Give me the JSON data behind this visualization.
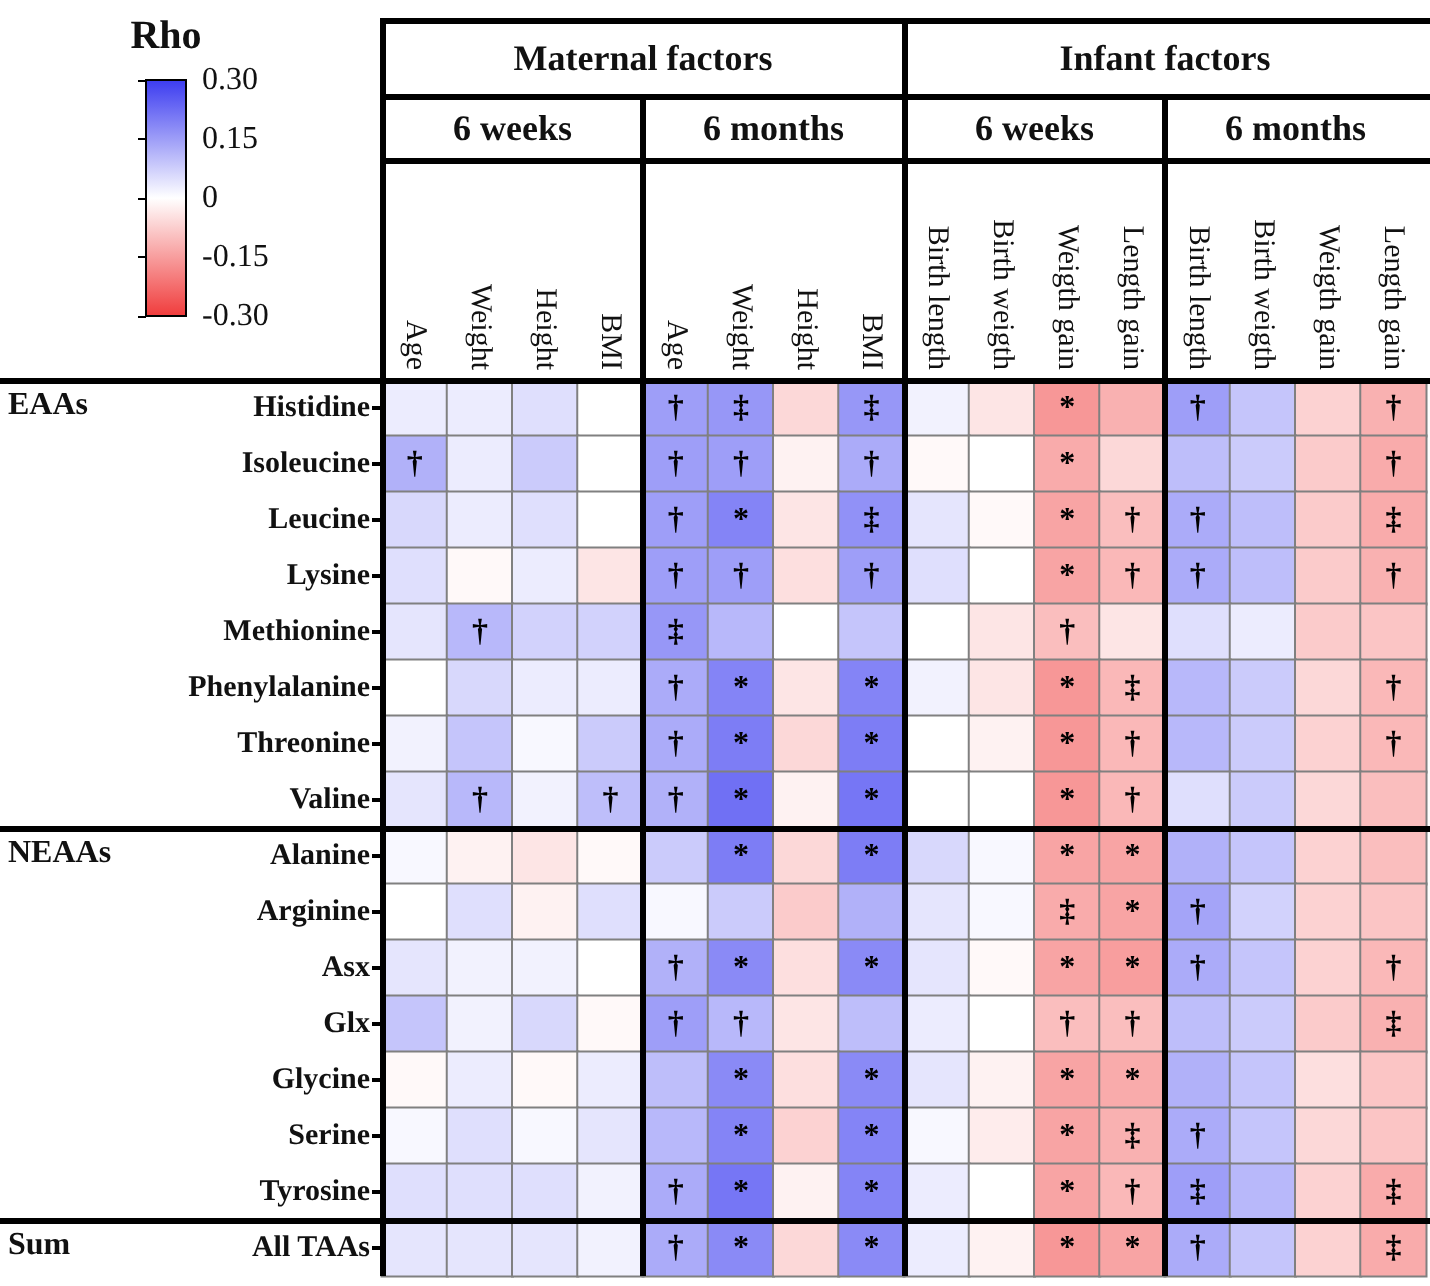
{
  "chart_data": {
    "type": "heatmap",
    "clabel": "Rho",
    "categories": [
      "Age",
      "Weight",
      "Height",
      "BMI",
      "Age",
      "Weight",
      "Height",
      "BMI",
      "Birth length",
      "Birth weigth",
      "Weigth gain",
      "Length gain",
      "Birth length",
      "Birth weigth",
      "Weigth gain",
      "Length gain"
    ],
    "y_categories": [
      "Histidine",
      "Isoleucine",
      "Leucine",
      "Lysine",
      "Methionine",
      "Phenylalanine",
      "Threonine",
      "Valine",
      "Alanine",
      "Arginine",
      "Asx",
      "Glx",
      "Glycine",
      "Serine",
      "Tyrosine",
      "All TAAs"
    ],
    "cells": [
      [
        0.03,
        0.03,
        0.05,
        0.0,
        0.15,
        0.16,
        -0.06,
        0.16,
        0.02,
        -0.04,
        -0.16,
        -0.12,
        0.15,
        0.09,
        -0.07,
        -0.12
      ],
      [
        0.12,
        0.03,
        0.08,
        0.0,
        0.15,
        0.15,
        -0.02,
        0.13,
        -0.01,
        0.0,
        -0.13,
        -0.06,
        0.1,
        0.08,
        -0.08,
        -0.13
      ],
      [
        0.06,
        0.03,
        0.05,
        0.0,
        0.15,
        0.19,
        -0.04,
        0.17,
        0.04,
        -0.01,
        -0.14,
        -0.1,
        0.13,
        0.1,
        -0.08,
        -0.13
      ],
      [
        0.05,
        -0.01,
        0.03,
        -0.04,
        0.15,
        0.15,
        -0.05,
        0.15,
        0.05,
        0.0,
        -0.14,
        -0.11,
        0.13,
        0.1,
        -0.08,
        -0.12
      ],
      [
        0.04,
        0.11,
        0.07,
        0.07,
        0.16,
        0.11,
        0.0,
        0.09,
        0.0,
        -0.04,
        -0.1,
        -0.04,
        0.05,
        0.03,
        -0.08,
        -0.09
      ],
      [
        0.0,
        0.06,
        0.03,
        0.03,
        0.13,
        0.19,
        -0.04,
        0.19,
        0.02,
        -0.04,
        -0.16,
        -0.11,
        0.11,
        0.08,
        -0.06,
        -0.11
      ],
      [
        0.02,
        0.09,
        0.01,
        0.08,
        0.13,
        0.2,
        -0.06,
        0.2,
        0.0,
        -0.02,
        -0.16,
        -0.11,
        0.11,
        0.08,
        -0.07,
        -0.11
      ],
      [
        0.04,
        0.11,
        0.02,
        0.1,
        0.12,
        0.22,
        -0.02,
        0.21,
        0.0,
        0.0,
        -0.16,
        -0.11,
        0.05,
        0.08,
        -0.06,
        -0.1
      ],
      [
        0.01,
        -0.02,
        -0.04,
        -0.01,
        0.08,
        0.2,
        -0.06,
        0.2,
        0.06,
        0.01,
        -0.14,
        -0.14,
        0.12,
        0.09,
        -0.07,
        -0.1
      ],
      [
        0.0,
        0.05,
        -0.02,
        0.05,
        0.01,
        0.08,
        -0.08,
        0.12,
        0.04,
        0.01,
        -0.13,
        -0.14,
        0.14,
        0.07,
        -0.07,
        -0.09
      ],
      [
        0.04,
        0.02,
        0.02,
        0.0,
        0.12,
        0.18,
        -0.05,
        0.18,
        0.04,
        -0.01,
        -0.14,
        -0.15,
        0.13,
        0.09,
        -0.07,
        -0.11
      ],
      [
        0.09,
        0.02,
        0.06,
        -0.01,
        0.15,
        0.11,
        -0.04,
        0.1,
        0.03,
        0.0,
        -0.1,
        -0.1,
        0.1,
        0.08,
        -0.08,
        -0.12
      ],
      [
        -0.01,
        0.03,
        -0.01,
        0.03,
        0.1,
        0.18,
        -0.05,
        0.18,
        0.04,
        -0.02,
        -0.14,
        -0.13,
        0.12,
        0.09,
        -0.05,
        -0.09
      ],
      [
        0.01,
        0.05,
        0.01,
        0.04,
        0.11,
        0.19,
        -0.07,
        0.19,
        0.01,
        -0.03,
        -0.14,
        -0.12,
        0.13,
        0.09,
        -0.06,
        -0.09
      ],
      [
        0.05,
        0.05,
        0.05,
        0.02,
        0.13,
        0.21,
        -0.02,
        0.19,
        0.03,
        0.0,
        -0.14,
        -0.11,
        0.15,
        0.11,
        -0.07,
        -0.13
      ],
      [
        0.04,
        0.04,
        0.04,
        0.02,
        0.13,
        0.18,
        -0.06,
        0.18,
        0.03,
        -0.02,
        -0.16,
        -0.14,
        0.13,
        0.09,
        -0.07,
        -0.13
      ]
    ],
    "cell_labels": [
      [
        null,
        null,
        null,
        null,
        "†",
        "‡",
        null,
        "‡",
        null,
        null,
        "*",
        null,
        "†",
        null,
        null,
        "†"
      ],
      [
        "†",
        null,
        null,
        null,
        "†",
        "†",
        null,
        "†",
        null,
        null,
        "*",
        null,
        null,
        null,
        null,
        "†"
      ],
      [
        null,
        null,
        null,
        null,
        "†",
        "*",
        null,
        "‡",
        null,
        null,
        "*",
        "†",
        "†",
        null,
        null,
        "‡"
      ],
      [
        null,
        null,
        null,
        null,
        "†",
        "†",
        null,
        "†",
        null,
        null,
        "*",
        "†",
        "†",
        null,
        null,
        "†"
      ],
      [
        null,
        "†",
        null,
        null,
        "‡",
        null,
        null,
        null,
        null,
        null,
        "†",
        null,
        null,
        null,
        null,
        null
      ],
      [
        null,
        null,
        null,
        null,
        "†",
        "*",
        null,
        "*",
        null,
        null,
        "*",
        "‡",
        null,
        null,
        null,
        "†"
      ],
      [
        null,
        null,
        null,
        null,
        "†",
        "*",
        null,
        "*",
        null,
        null,
        "*",
        "†",
        null,
        null,
        null,
        "†"
      ],
      [
        null,
        "†",
        null,
        "†",
        "†",
        "*",
        null,
        "*",
        null,
        null,
        "*",
        "†",
        null,
        null,
        null,
        null
      ],
      [
        null,
        null,
        null,
        null,
        null,
        "*",
        null,
        "*",
        null,
        null,
        "*",
        "*",
        null,
        null,
        null,
        null
      ],
      [
        null,
        null,
        null,
        null,
        null,
        null,
        null,
        null,
        null,
        null,
        "‡",
        "*",
        "†",
        null,
        null,
        null
      ],
      [
        null,
        null,
        null,
        null,
        "†",
        "*",
        null,
        "*",
        null,
        null,
        "*",
        "*",
        "†",
        null,
        null,
        "†"
      ],
      [
        null,
        null,
        null,
        null,
        "†",
        "†",
        null,
        null,
        null,
        null,
        "†",
        "†",
        null,
        null,
        null,
        "‡"
      ],
      [
        null,
        null,
        null,
        null,
        null,
        "*",
        null,
        "*",
        null,
        null,
        "*",
        "*",
        null,
        null,
        null,
        null
      ],
      [
        null,
        null,
        null,
        null,
        null,
        "*",
        null,
        "*",
        null,
        null,
        "*",
        "‡",
        "†",
        null,
        null,
        null
      ],
      [
        null,
        null,
        null,
        null,
        "†",
        "*",
        null,
        "*",
        null,
        null,
        "*",
        "†",
        "‡",
        null,
        null,
        "‡"
      ],
      [
        null,
        null,
        null,
        null,
        "†",
        "*",
        null,
        "*",
        null,
        null,
        "*",
        "*",
        "†",
        null,
        null,
        "‡"
      ]
    ],
    "clim": [
      -0.3,
      0.3
    ],
    "cticks": [
      {
        "value": 0.3,
        "label": "0.30"
      },
      {
        "value": 0.15,
        "label": "0.15"
      },
      {
        "value": 0,
        "label": "0"
      },
      {
        "value": -0.15,
        "label": "-0.15"
      },
      {
        "value": -0.3,
        "label": "-0.30"
      }
    ],
    "annotations": [
      "Maternal factors",
      "Infant factors",
      "6 weeks",
      "6 months",
      "6 weeks",
      "6 months",
      "EAAs",
      "NEAAs",
      "Sum"
    ]
  }
}
